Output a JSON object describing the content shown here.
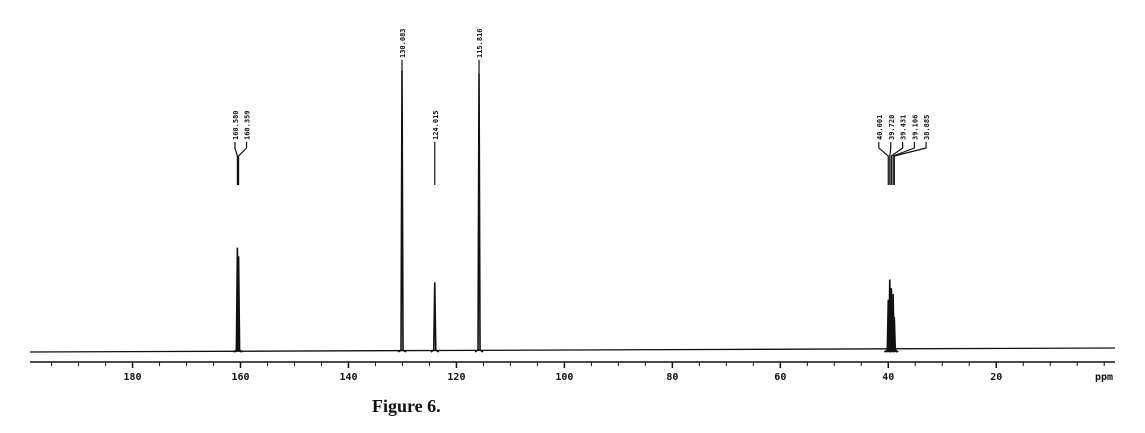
{
  "chart_data": {
    "type": "spectrum",
    "caption": "Figure 6.",
    "xlabel": "ppm",
    "x": [
      160.58,
      160.359,
      130.083,
      124.015,
      115.816,
      40.001,
      39.72,
      39.431,
      39.106,
      38.885
    ],
    "value_labels": [
      "160.580",
      "160.359",
      "130.083",
      "124.015",
      "115.816",
      "40.001",
      "39.720",
      "39.431",
      "39.106",
      "38.885"
    ],
    "values": [
      36,
      33,
      97,
      24,
      96,
      18,
      25,
      22,
      20,
      12
    ],
    "color": "#111111",
    "xlim": [
      199,
      -2
    ],
    "xticks": [
      180,
      160,
      140,
      120,
      100,
      80,
      60,
      40,
      20
    ],
    "minor_xticks": [
      195,
      190,
      185,
      175,
      170,
      165,
      155,
      150,
      145,
      135,
      130,
      125,
      115,
      110,
      105,
      95,
      90,
      85,
      75,
      70,
      65,
      55,
      50,
      45,
      35,
      30,
      25,
      15,
      10,
      5,
      0
    ],
    "ylim": [
      0,
      100
    ]
  }
}
